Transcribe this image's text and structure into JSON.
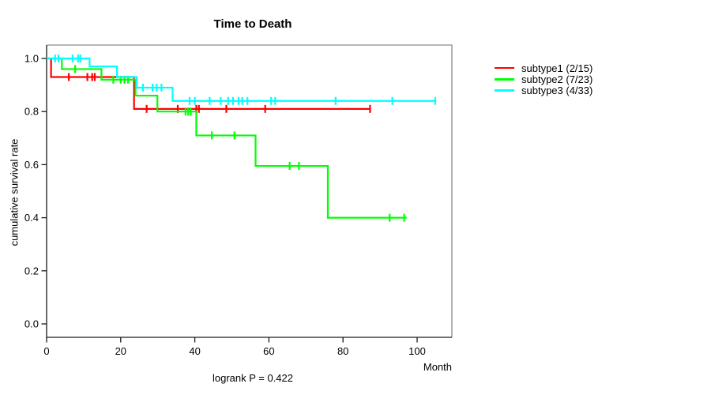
{
  "chart_data": {
    "type": "line",
    "variant": "kaplan-meier-step",
    "title": "Time to Death",
    "xlabel": "Month",
    "ylabel": "cumulative survival rate",
    "footnote": "logrank P = 0.422",
    "x_ticks": [
      0,
      20,
      40,
      60,
      80,
      100
    ],
    "y_ticks": [
      0.0,
      0.2,
      0.4,
      0.6,
      0.8,
      1.0
    ],
    "xlim": [
      0,
      109
    ],
    "ylim": [
      0,
      1.05
    ],
    "grid": false,
    "legend_position": "right-outside",
    "series": [
      {
        "name": "subtype1 (2/15)",
        "color": "#ff0000",
        "steps": [
          [
            0,
            1.0
          ],
          [
            1.2,
            0.93
          ],
          [
            23.6,
            0.81
          ]
        ],
        "end": 87.3,
        "censors": [
          [
            6,
            0.93
          ],
          [
            11,
            0.93
          ],
          [
            12.3,
            0.93
          ],
          [
            13,
            0.93
          ],
          [
            27,
            0.81
          ],
          [
            35.4,
            0.81
          ],
          [
            40.4,
            0.81
          ],
          [
            41.1,
            0.81
          ],
          [
            48.5,
            0.81
          ],
          [
            59,
            0.81
          ],
          [
            87.3,
            0.81
          ]
        ]
      },
      {
        "name": "subtype2 (7/23)",
        "color": "#00ff00",
        "steps": [
          [
            0,
            1.0
          ],
          [
            4.1,
            0.96
          ],
          [
            14.8,
            0.92
          ],
          [
            24,
            0.86
          ],
          [
            29.9,
            0.8
          ],
          [
            40.4,
            0.71
          ],
          [
            56.4,
            0.595
          ],
          [
            75.9,
            0.4
          ]
        ],
        "end": 97.2,
        "censors": [
          [
            7.7,
            0.96
          ],
          [
            18,
            0.92
          ],
          [
            20,
            0.92
          ],
          [
            21,
            0.92
          ],
          [
            22,
            0.92
          ],
          [
            37.5,
            0.8
          ],
          [
            38.2,
            0.8
          ],
          [
            38.9,
            0.8
          ],
          [
            44.6,
            0.71
          ],
          [
            50.7,
            0.71
          ],
          [
            65.6,
            0.595
          ],
          [
            68.1,
            0.595
          ],
          [
            92.6,
            0.4
          ],
          [
            96.5,
            0.4
          ]
        ]
      },
      {
        "name": "subtype3 (4/33)",
        "color": "#00ffff",
        "steps": [
          [
            0,
            1.0
          ],
          [
            11.6,
            0.97
          ],
          [
            19,
            0.93
          ],
          [
            24.3,
            0.89
          ],
          [
            34,
            0.84
          ]
        ],
        "end": 104.9,
        "censors": [
          [
            2.3,
            1.0
          ],
          [
            3.2,
            1.0
          ],
          [
            7,
            1.0
          ],
          [
            8.5,
            1.0
          ],
          [
            9.1,
            1.0
          ],
          [
            26,
            0.89
          ],
          [
            28.6,
            0.89
          ],
          [
            29.7,
            0.89
          ],
          [
            31,
            0.89
          ],
          [
            38.6,
            0.84
          ],
          [
            40,
            0.84
          ],
          [
            44,
            0.84
          ],
          [
            47,
            0.84
          ],
          [
            49,
            0.84
          ],
          [
            50.3,
            0.84
          ],
          [
            51.8,
            0.84
          ],
          [
            52.8,
            0.84
          ],
          [
            54.2,
            0.84
          ],
          [
            60.6,
            0.84
          ],
          [
            61.7,
            0.84
          ],
          [
            78,
            0.84
          ],
          [
            93.3,
            0.84
          ],
          [
            104.9,
            0.84
          ]
        ]
      }
    ]
  }
}
